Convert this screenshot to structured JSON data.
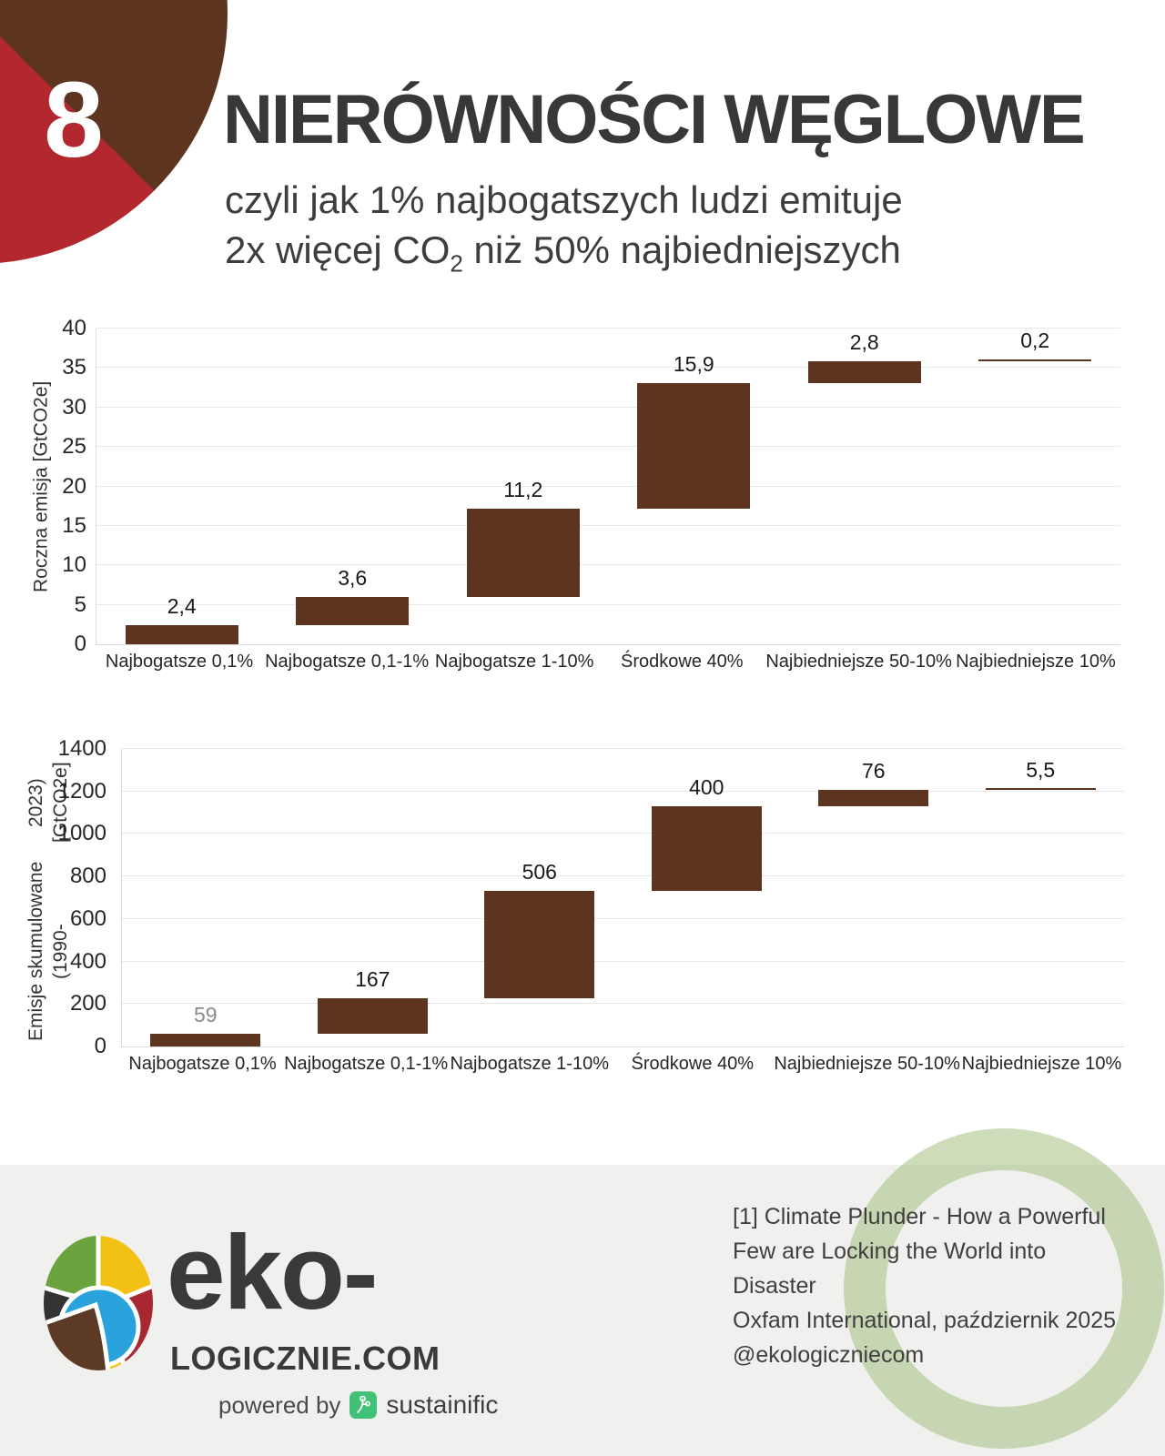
{
  "page": {
    "badge_number": "8",
    "title": "NIERÓWNOŚCI WĘGLOWE",
    "subtitle": {
      "line1": "czyli jak 1% najbogatszych ludzi emituje",
      "line2_pre": "2x więcej CO",
      "line2_sub": "2",
      "line2_post": " niż 50% najbiedniejszych"
    }
  },
  "colors": {
    "bar_brown": "#5d3420",
    "badge_brown": "#5d3420",
    "badge_red": "#b2282e",
    "ring_green": "rgba(164,193,129,0.55)",
    "sustainific_green": "#41c178",
    "gridline": "#e8e8e8"
  },
  "chart_data": [
    {
      "type": "bar",
      "subtype": "waterfall",
      "ylabel_lines": [
        "Roczna emisja [GtCO2e]"
      ],
      "categories": [
        "Najbogatsze 0,1%",
        "Najbogatsze 0,1-1%",
        "Najbogatsze 1-10%",
        "Środkowe 40%",
        "Najbiedniejsze 50-10%",
        "Najbiedniejsze 10%"
      ],
      "values": [
        2.4,
        3.6,
        11.2,
        15.9,
        2.8,
        0.2
      ],
      "labels": [
        "2,4",
        "3,6",
        "11,2",
        "15,9",
        "2,8",
        "0,2"
      ],
      "label_colors": [
        "#1a1a1a",
        "#1a1a1a",
        "#1a1a1a",
        "#1a1a1a",
        "#1a1a1a",
        "#1a1a1a"
      ],
      "cumulative_ends": [
        2.4,
        6.0,
        17.2,
        33.1,
        35.9,
        36.1
      ],
      "ylim": [
        0,
        40
      ],
      "yticks": [
        0,
        5,
        10,
        15,
        20,
        25,
        30,
        35,
        40
      ],
      "grid": true,
      "legend": "none",
      "bar_color": "#5d3420"
    },
    {
      "type": "bar",
      "subtype": "waterfall",
      "ylabel_lines": [
        "Emisje skumulowane (1990-",
        "2023) [GtCO2e]"
      ],
      "categories": [
        "Najbogatsze 0,1%",
        "Najbogatsze 0,1-1%",
        "Najbogatsze 1-10%",
        "Środkowe 40%",
        "Najbiedniejsze 50-10%",
        "Najbiedniejsze 10%"
      ],
      "values": [
        59,
        167,
        506,
        400,
        76,
        5.5
      ],
      "labels": [
        "59",
        "167",
        "506",
        "400",
        "76",
        "5,5"
      ],
      "label_colors": [
        "#8a8a8a",
        "#1a1a1a",
        "#1a1a1a",
        "#1a1a1a",
        "#1a1a1a",
        "#1a1a1a"
      ],
      "cumulative_ends": [
        59,
        226,
        732,
        1132,
        1208,
        1213.5
      ],
      "ylim": [
        0,
        1400
      ],
      "yticks": [
        0,
        200,
        400,
        600,
        800,
        1000,
        1200,
        1400
      ],
      "grid": true,
      "legend": "none",
      "bar_color": "#5d3420"
    }
  ],
  "footer": {
    "brand_top": "eko-",
    "brand_bottom": "LOGICZNIE.COM",
    "powered_by": "powered by",
    "powered_brand": "sustainific",
    "citation_lines": [
      "[1] Climate Plunder - How a Powerful",
      "Few are Locking the World into Disaster",
      "Oxfam International, październik 2025",
      "@ekologiczniecom"
    ]
  }
}
